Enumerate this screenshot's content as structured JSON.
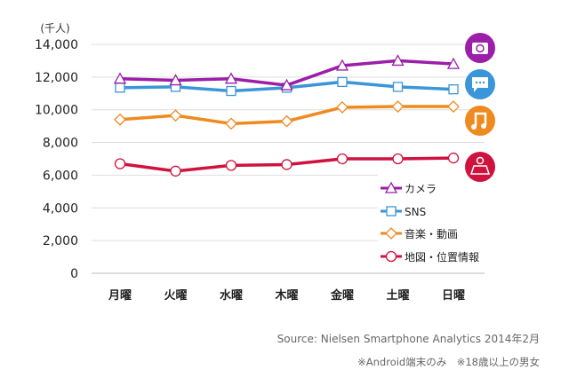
{
  "chart_data": {
    "type": "line",
    "title": "",
    "unit_label": "(千人)",
    "xlabel": "",
    "ylabel": "",
    "categories": [
      "月曜",
      "火曜",
      "水曜",
      "木曜",
      "金曜",
      "土曜",
      "日曜"
    ],
    "ylim": [
      0,
      14000
    ],
    "yticks": [
      0,
      2000,
      4000,
      6000,
      8000,
      10000,
      12000,
      14000
    ],
    "ytick_labels": [
      "0",
      "2,000",
      "4,000",
      "6,000",
      "8,000",
      "10,000",
      "12,000",
      "14,000"
    ],
    "grid": true,
    "legend_position": "bottom-right",
    "series": [
      {
        "name": "カメラ",
        "color": "#9b1fa8",
        "marker": "triangle",
        "icon": "camera-icon",
        "values": [
          11900,
          11800,
          11900,
          11500,
          12700,
          13000,
          12800
        ]
      },
      {
        "name": "SNS",
        "color": "#3a96d8",
        "marker": "square",
        "icon": "chat-bubble-icon",
        "values": [
          11350,
          11400,
          11150,
          11350,
          11700,
          11400,
          11250
        ]
      },
      {
        "name": "音楽・動画",
        "color": "#ef8a1f",
        "marker": "diamond",
        "icon": "music-note-icon",
        "values": [
          9400,
          9650,
          9150,
          9300,
          10150,
          10200,
          10200
        ]
      },
      {
        "name": "地図・位置情報",
        "color": "#d0123f",
        "marker": "circle",
        "icon": "map-pin-icon",
        "values": [
          6700,
          6250,
          6600,
          6650,
          7000,
          7000,
          7050
        ]
      }
    ]
  },
  "footer": {
    "source": "Source: Nielsen Smartphone Analytics 2014年2月",
    "note": "※Android端末のみ　※18歳以上の男女"
  }
}
